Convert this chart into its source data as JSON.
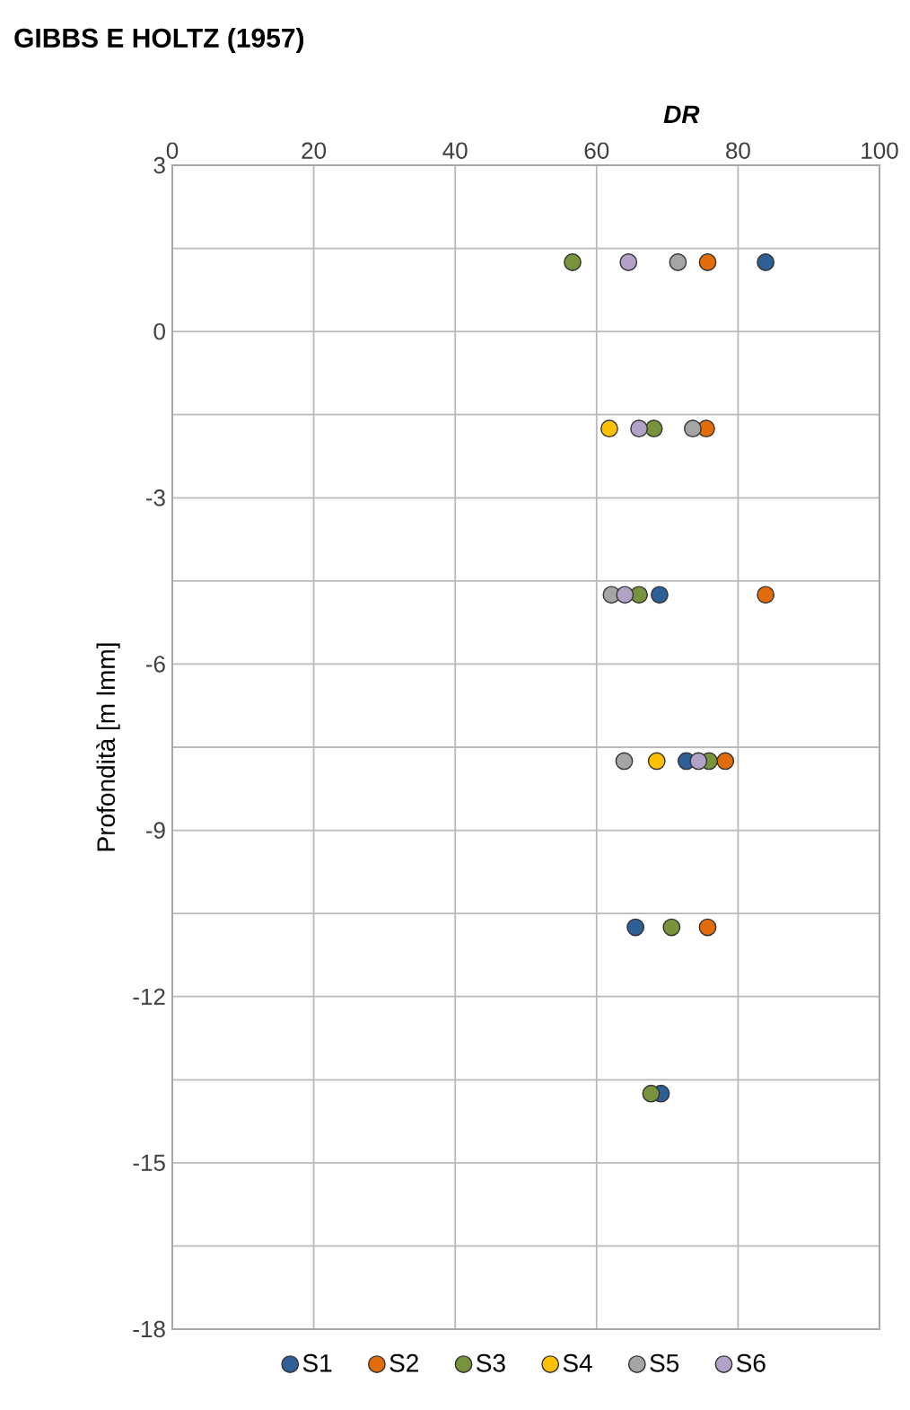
{
  "chart_data": {
    "type": "scatter",
    "title": "GIBBS E HOLTZ (1957)",
    "xlabel": "DR",
    "ylabel": "Profondità [m lmm]",
    "xlim": [
      0,
      100
    ],
    "xticks": [
      0,
      20,
      40,
      60,
      80,
      100
    ],
    "ylim": [
      -18,
      3
    ],
    "yticks": [
      3,
      {
        "value": 1.5,
        "label": null
      },
      0,
      {
        "value": -1.5,
        "label": null
      },
      -3,
      {
        "value": -4.5,
        "label": null
      },
      -6,
      {
        "value": -7.5,
        "label": null
      },
      -9,
      {
        "value": -10.5,
        "label": null
      },
      -12,
      {
        "value": -13.5,
        "label": null
      },
      -15,
      {
        "value": -16.5,
        "label": null
      },
      -18
    ],
    "grid": true,
    "legend": "bottom",
    "marker": "circle",
    "series": [
      {
        "name": "S1",
        "color": "#2f5f97",
        "x": [
          83.9,
          68.9,
          72.7,
          65.5,
          69.1
        ],
        "values": [
          1.25,
          -4.75,
          -7.75,
          -10.75,
          -13.75
        ]
      },
      {
        "name": "S2",
        "color": "#e36c0a",
        "x": [
          75.7,
          75.5,
          83.9,
          78.2,
          75.7
        ],
        "values": [
          1.25,
          -1.75,
          -4.75,
          -7.75,
          -10.75
        ]
      },
      {
        "name": "S3",
        "color": "#77933c",
        "x": [
          56.6,
          68.1,
          66.0,
          75.9,
          70.6,
          67.7
        ],
        "values": [
          1.25,
          -1.75,
          -4.75,
          -7.75,
          -10.75,
          -13.75
        ]
      },
      {
        "name": "S4",
        "color": "#ffc000",
        "x": [
          61.8,
          68.5
        ],
        "values": [
          -1.75,
          -7.75
        ]
      },
      {
        "name": "S5",
        "color": "#a5a5a5",
        "x": [
          71.5,
          73.6,
          62.1,
          63.9
        ],
        "values": [
          1.25,
          -1.75,
          -4.75,
          -7.75
        ]
      },
      {
        "name": "S6",
        "color": "#b3a2c7",
        "x": [
          64.5,
          66.0,
          64.0,
          74.4
        ],
        "values": [
          1.25,
          -1.75,
          -4.75,
          -7.75
        ]
      }
    ]
  }
}
